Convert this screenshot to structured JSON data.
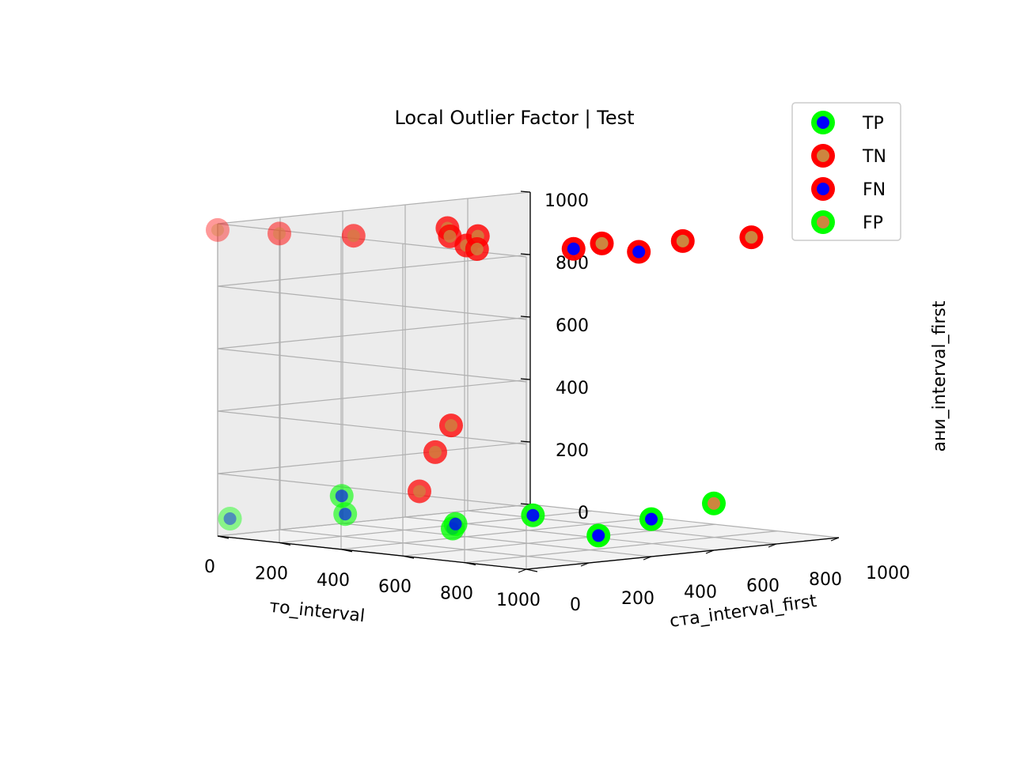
{
  "chart_data": {
    "type": "scatter",
    "title": "Local Outlier Factor | Test",
    "xlabel": "то_interval",
    "ylabel": "ста_interval_first",
    "zlabel": "ани_interval_first",
    "xlim": [
      0,
      1000
    ],
    "ylim": [
      0,
      1000
    ],
    "zlim": [
      0,
      1000
    ],
    "x_ticks": [
      "0",
      "200",
      "400",
      "600",
      "800",
      "1000"
    ],
    "y_ticks": [
      "0",
      "200",
      "400",
      "600",
      "800",
      "1000"
    ],
    "z_ticks": [
      "0",
      "200",
      "400",
      "600",
      "800",
      "1000"
    ],
    "grid": true,
    "legend_position": "top-right",
    "colors": {
      "green": "#00ff00",
      "red": "#ff0000",
      "blue": "#0000ff",
      "orange": "#cd853f"
    },
    "series": [
      {
        "name": "TP",
        "edge_color": "#00ff00",
        "face_color": "#0000ff",
        "points": [
          {
            "x": 40,
            "y": 0,
            "z": 60
          },
          {
            "x": 150,
            "y": 260,
            "z": 60
          },
          {
            "x": 250,
            "y": 150,
            "z": 140
          },
          {
            "x": 640,
            "y": 120,
            "z": 80
          },
          {
            "x": 720,
            "y": 50,
            "z": 110
          },
          {
            "x": 900,
            "y": 120,
            "z": 150
          },
          {
            "x": 930,
            "y": 300,
            "z": 70
          },
          {
            "x": 1000,
            "y": 400,
            "z": 120
          }
        ]
      },
      {
        "name": "TN",
        "edge_color": "#ff0000",
        "face_color": "#cd853f",
        "points": [
          {
            "x": 0,
            "y": 0,
            "z": 980
          },
          {
            "x": 200,
            "y": 0,
            "z": 990
          },
          {
            "x": 400,
            "y": 40,
            "z": 1000
          },
          {
            "x": 340,
            "y": 460,
            "z": 920
          },
          {
            "x": 380,
            "y": 360,
            "z": 990
          },
          {
            "x": 560,
            "y": 190,
            "z": 1000
          },
          {
            "x": 600,
            "y": 240,
            "z": 1000
          },
          {
            "x": 800,
            "y": 40,
            "z": 1000
          },
          {
            "x": 860,
            "y": 380,
            "z": 990
          },
          {
            "x": 950,
            "y": 550,
            "z": 990
          },
          {
            "x": 1000,
            "y": 720,
            "z": 990
          },
          {
            "x": 250,
            "y": 500,
            "z": 330
          },
          {
            "x": 300,
            "y": 400,
            "z": 260
          },
          {
            "x": 350,
            "y": 300,
            "z": 150
          }
        ]
      },
      {
        "name": "FN",
        "edge_color": "#ff0000",
        "face_color": "#0000ff",
        "points": [
          {
            "x": 900,
            "y": 250,
            "z": 990
          },
          {
            "x": 1000,
            "y": 360,
            "z": 980
          }
        ]
      },
      {
        "name": "FP",
        "edge_color": "#00ff00",
        "face_color": "#cd853f",
        "points": [
          {
            "x": 1000,
            "y": 600,
            "z": 150
          }
        ]
      }
    ]
  }
}
